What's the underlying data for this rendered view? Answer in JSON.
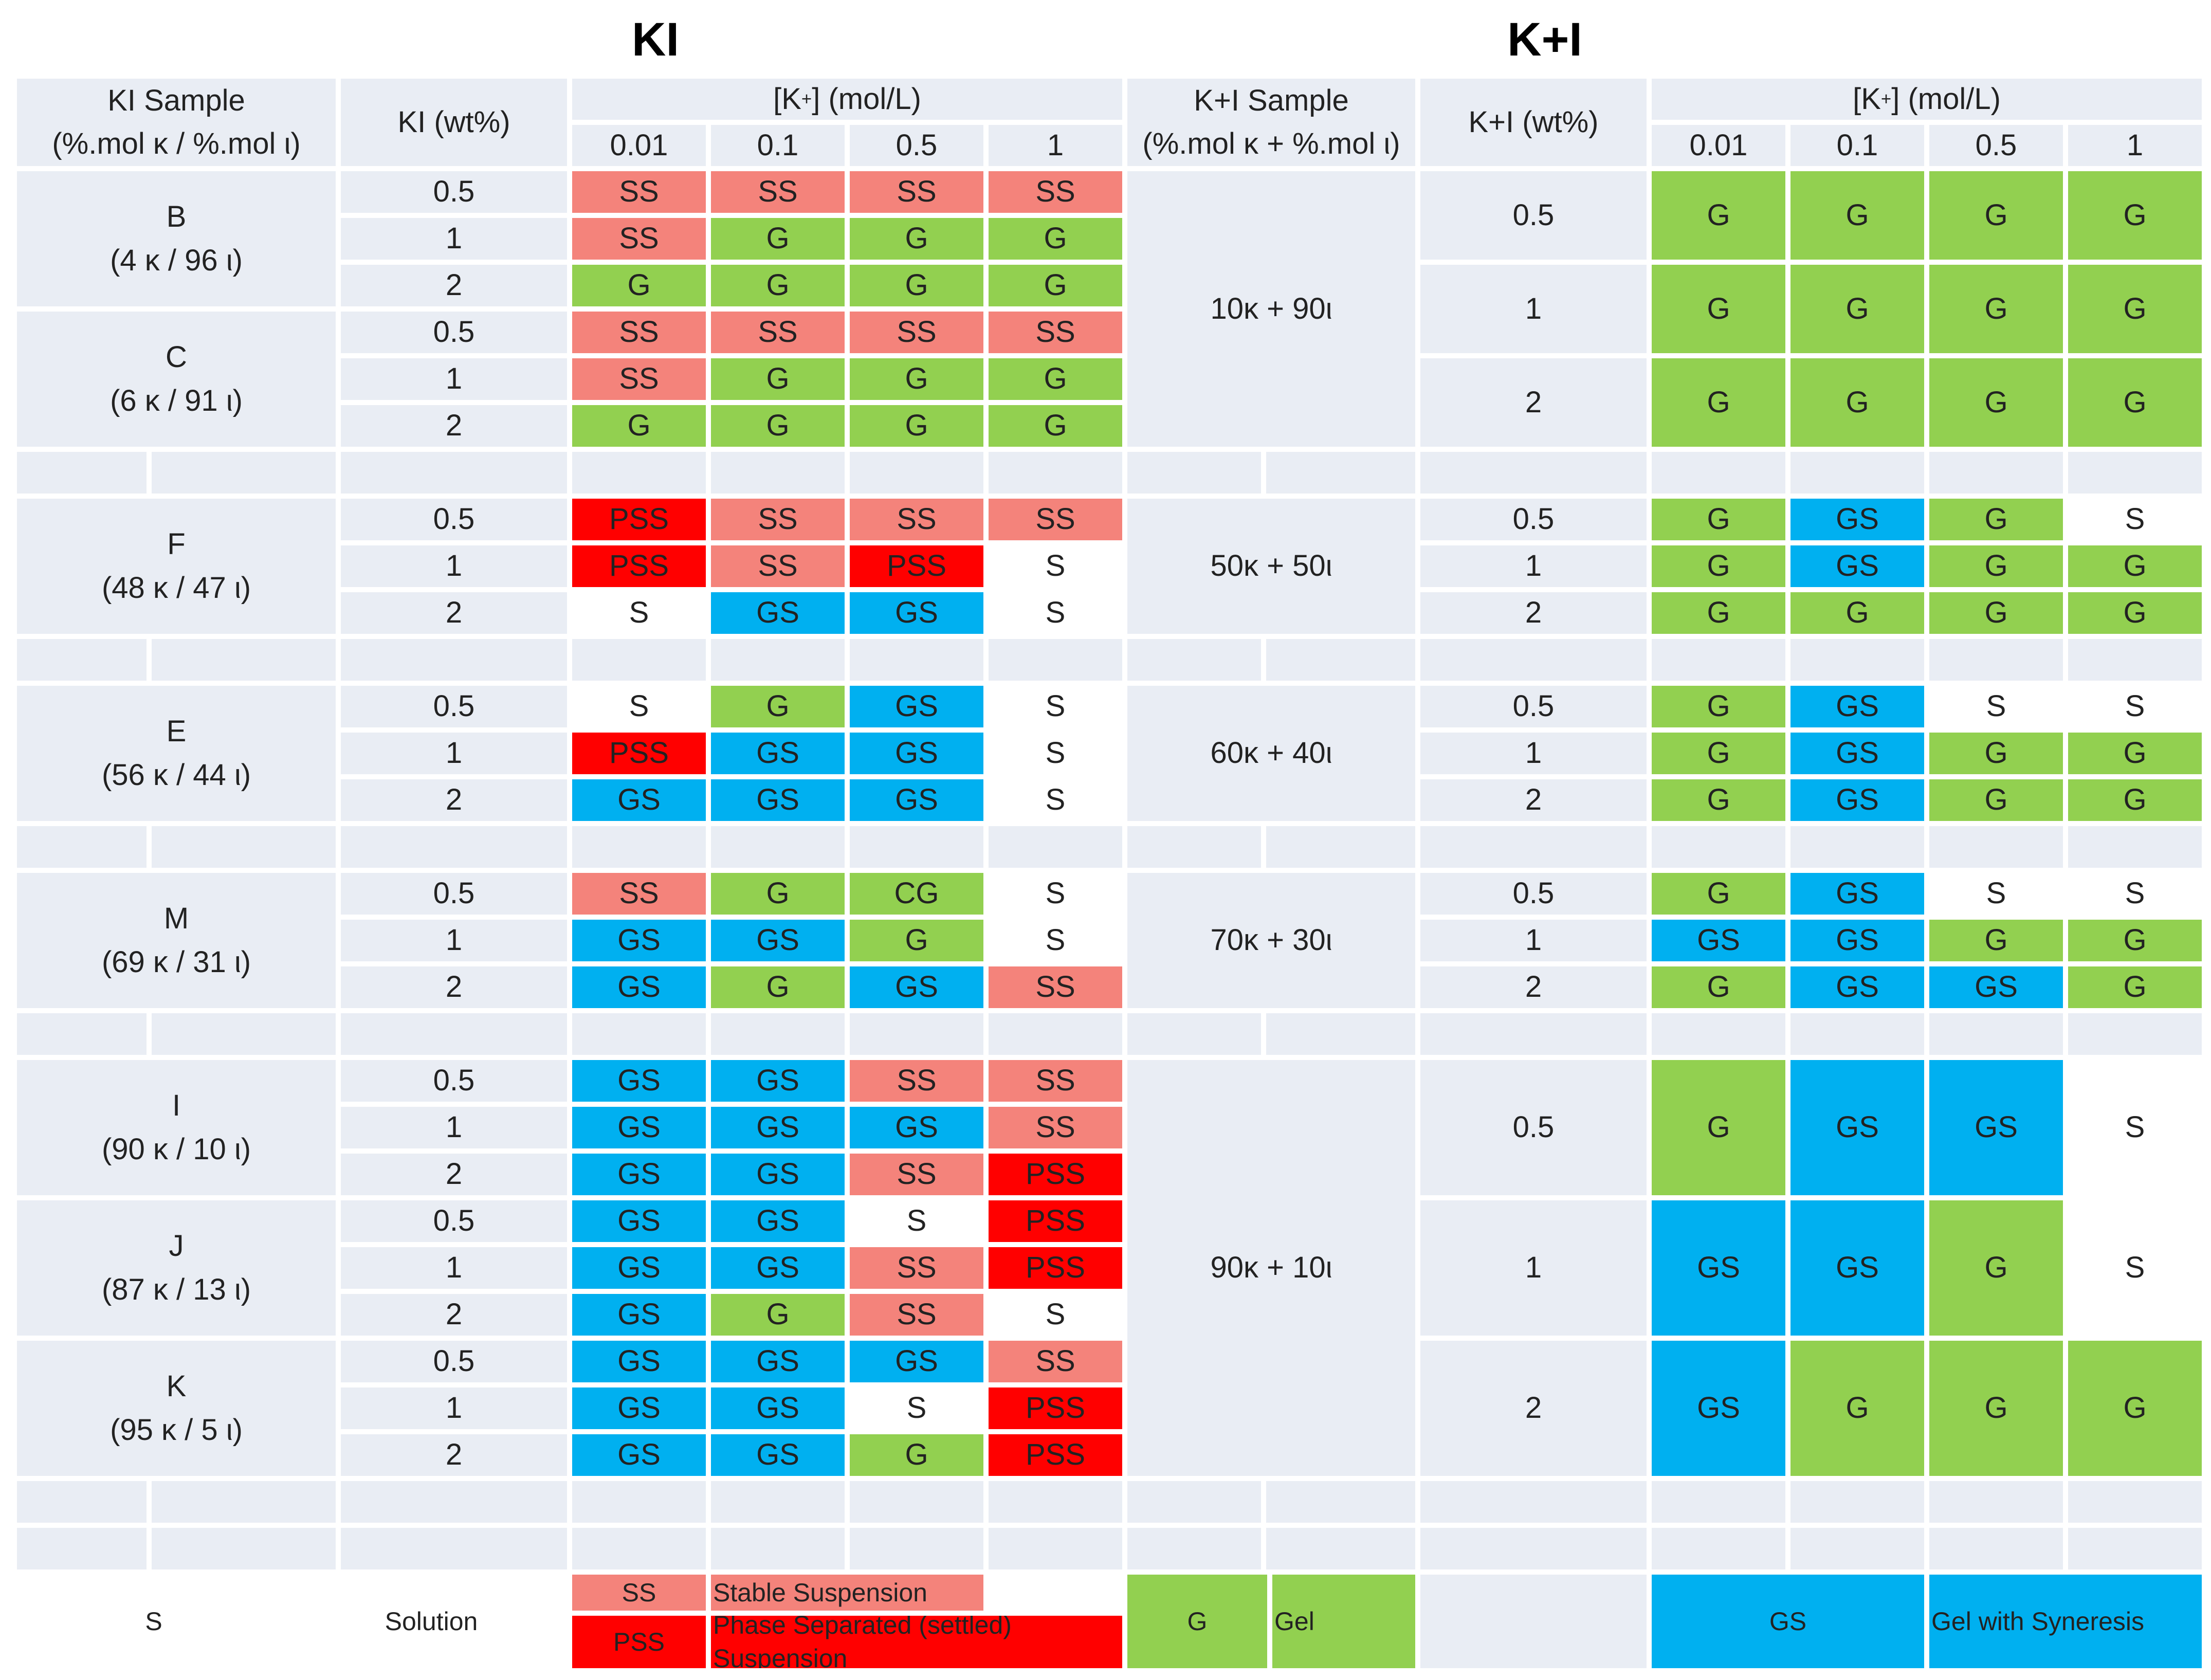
{
  "titles": {
    "left": "KI",
    "right": "K+I"
  },
  "headers": {
    "ki_sample": "KI Sample\n(%.mol κ / %.mol ι)",
    "ki_wt": "KI (wt%)",
    "kplusi_sample": "K+I  Sample\n(%.mol κ + %.mol ι)",
    "kplusi_wt": "K+I (wt%)",
    "k_conc_prefix": "[K",
    "k_conc_sup": "+",
    "k_conc_suffix": "] (mol/L)",
    "k_concentrations": [
      "0.01",
      "0.1",
      "0.5",
      "1"
    ]
  },
  "chart_data": [
    {
      "type": "table",
      "title": "KI",
      "columns": [
        "KI Sample (%.mol κ / %.mol ι)",
        "KI (wt%)",
        "0.01",
        "0.1",
        "0.5",
        "1"
      ],
      "groups": [
        {
          "sample": "B\n(4 κ / 96 ι)",
          "rows": [
            [
              "0.5",
              "SS",
              "SS",
              "SS",
              "SS"
            ],
            [
              "1",
              "SS",
              "G",
              "G",
              "G"
            ],
            [
              "2",
              "G",
              "G",
              "G",
              "G"
            ]
          ]
        },
        {
          "sample": "C\n(6 κ / 91 ι)",
          "rows": [
            [
              "0.5",
              "SS",
              "SS",
              "SS",
              "SS"
            ],
            [
              "1",
              "SS",
              "G",
              "G",
              "G"
            ],
            [
              "2",
              "G",
              "G",
              "G",
              "G"
            ]
          ]
        },
        {
          "sample": "F\n(48 κ / 47 ι)",
          "rows": [
            [
              "0.5",
              "PSS",
              "SS",
              "SS",
              "SS"
            ],
            [
              "1",
              "PSS",
              "SS",
              "PSS",
              "S"
            ],
            [
              "2",
              "S",
              "GS",
              "GS",
              "S"
            ]
          ]
        },
        {
          "sample": "E\n(56 κ / 44 ι)",
          "rows": [
            [
              "0.5",
              "S",
              "G",
              "GS",
              "S"
            ],
            [
              "1",
              "PSS",
              "GS",
              "GS",
              "S"
            ],
            [
              "2",
              "GS",
              "GS",
              "GS",
              "S"
            ]
          ]
        },
        {
          "sample": "M\n(69 κ / 31 ι)",
          "rows": [
            [
              "0.5",
              "SS",
              "G",
              "CG",
              "S"
            ],
            [
              "1",
              "GS",
              "GS",
              "G",
              "S"
            ],
            [
              "2",
              "GS",
              "G",
              "GS",
              "SS"
            ]
          ]
        },
        {
          "sample": "I\n(90 κ / 10 ι)",
          "rows": [
            [
              "0.5",
              "GS",
              "GS",
              "SS",
              "SS"
            ],
            [
              "1",
              "GS",
              "GS",
              "GS",
              "SS"
            ],
            [
              "2",
              "GS",
              "GS",
              "SS",
              "PSS"
            ]
          ]
        },
        {
          "sample": "J\n(87 κ / 13 ι)",
          "rows": [
            [
              "0.5",
              "GS",
              "GS",
              "S",
              "PSS"
            ],
            [
              "1",
              "GS",
              "GS",
              "SS",
              "PSS"
            ],
            [
              "2",
              "GS",
              "G",
              "SS",
              "S"
            ]
          ]
        },
        {
          "sample": "K\n(95 κ / 5 ι)",
          "rows": [
            [
              "0.5",
              "GS",
              "GS",
              "GS",
              "SS"
            ],
            [
              "1",
              "GS",
              "GS",
              "S",
              "PSS"
            ],
            [
              "2",
              "GS",
              "GS",
              "G",
              "PSS"
            ]
          ]
        }
      ]
    },
    {
      "type": "table",
      "title": "K+I",
      "columns": [
        "K+I  Sample (%.mol κ + %.mol ι)",
        "K+I (wt%)",
        "0.01",
        "0.1",
        "0.5",
        "1"
      ],
      "groups": [
        {
          "sample": "10κ + 90ι",
          "rows": [
            [
              "0.5",
              "G",
              "G",
              "G",
              "G"
            ],
            [
              "1",
              "G",
              "G",
              "G",
              "G"
            ],
            [
              "2",
              "G",
              "G",
              "G",
              "G"
            ]
          ]
        },
        {
          "sample": "50κ + 50ι",
          "rows": [
            [
              "0.5",
              "G",
              "GS",
              "G",
              "S"
            ],
            [
              "1",
              "G",
              "GS",
              "G",
              "G"
            ],
            [
              "2",
              "G",
              "G",
              "G",
              "G"
            ]
          ]
        },
        {
          "sample": "60κ + 40ι",
          "rows": [
            [
              "0.5",
              "G",
              "GS",
              "S",
              "S"
            ],
            [
              "1",
              "G",
              "GS",
              "G",
              "G"
            ],
            [
              "2",
              "G",
              "GS",
              "G",
              "G"
            ]
          ]
        },
        {
          "sample": "70κ + 30ι",
          "rows": [
            [
              "0.5",
              "G",
              "GS",
              "S",
              "S"
            ],
            [
              "1",
              "GS",
              "GS",
              "G",
              "G"
            ],
            [
              "2",
              "G",
              "GS",
              "GS",
              "G"
            ]
          ]
        },
        {
          "sample": "90κ + 10ι",
          "rows": [
            [
              "0.5",
              "G",
              "GS",
              "GS",
              "S"
            ],
            [
              "1",
              "GS",
              "GS",
              "G",
              "S"
            ],
            [
              "2",
              "GS",
              "G",
              "G",
              "G"
            ]
          ]
        }
      ]
    }
  ],
  "legend": {
    "S": {
      "code": "S",
      "label": "Solution"
    },
    "SS": {
      "code": "SS",
      "label": "Stable Suspension"
    },
    "PSS": {
      "code": "PSS",
      "label": "Phase Separated (settled) Suspension"
    },
    "G": {
      "code": "G",
      "label": "Gel"
    },
    "GS": {
      "code": "GS",
      "label": "Gel with Syneresis"
    }
  },
  "colors": {
    "S": "#ffffff",
    "SS": "#f4837b",
    "PSS": "#ff0000",
    "G": "#92d050",
    "CG": "#92d050",
    "GS": "#00b0f0",
    "empty": "#e9edf4"
  }
}
